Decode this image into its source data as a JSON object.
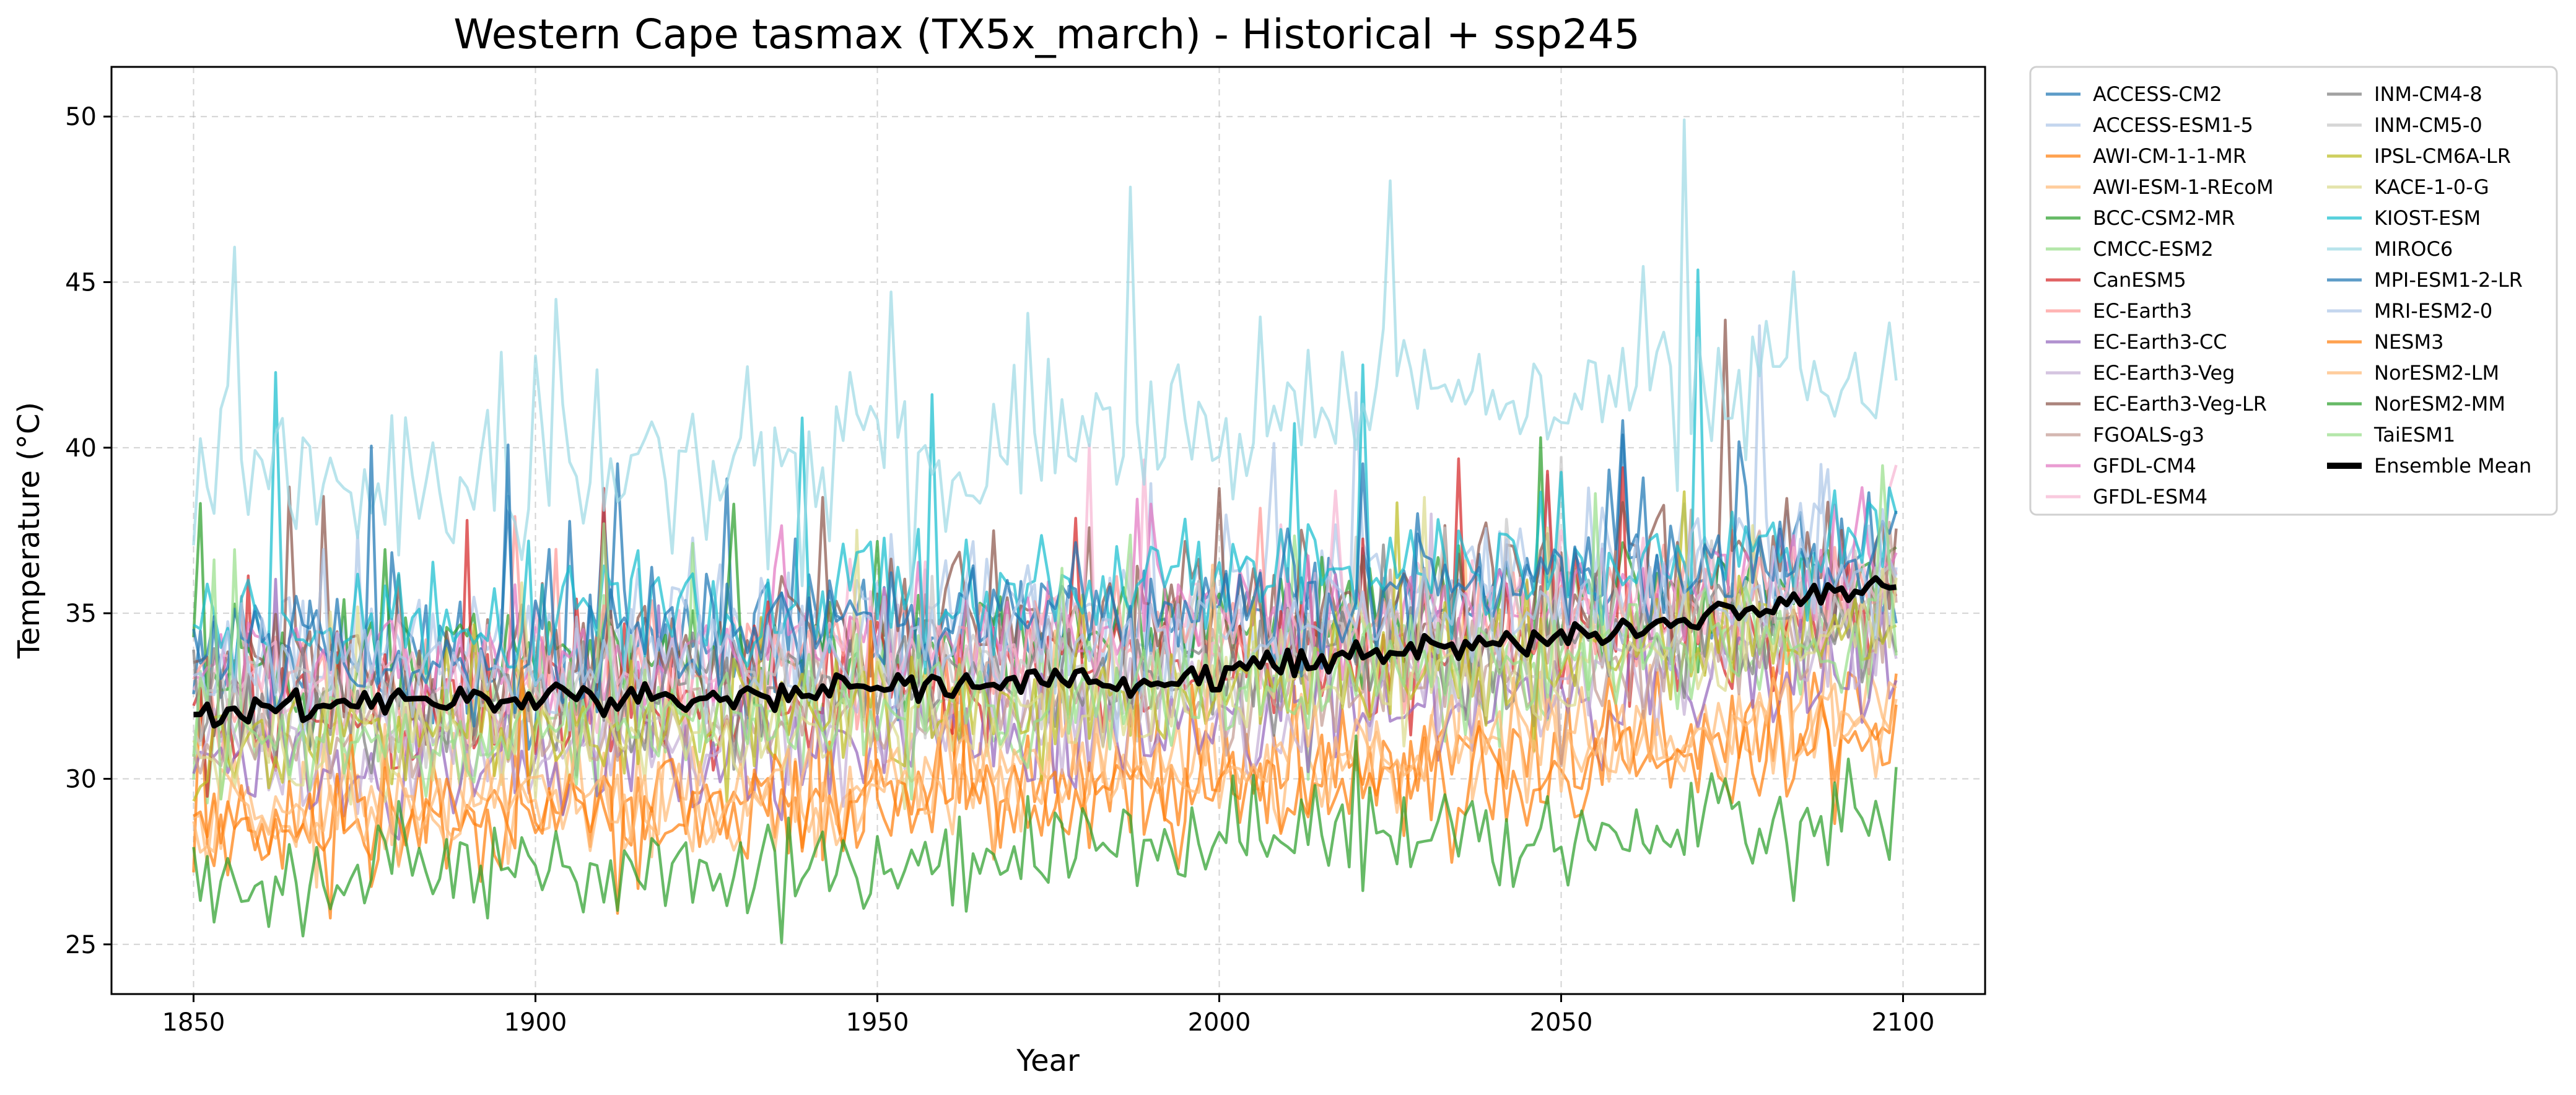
{
  "chart_data": {
    "type": "line",
    "title": "Western Cape tasmax (TX5x_march) - Historical + ssp245",
    "xlabel": "Year",
    "ylabel": "Temperature (°C)",
    "xlim": [
      1838,
      2112
    ],
    "ylim": [
      23.5,
      51.5
    ],
    "x_ticks": [
      1850,
      1900,
      1950,
      2000,
      2050,
      2100
    ],
    "y_ticks": [
      25,
      30,
      35,
      40,
      45,
      50
    ],
    "grid": true,
    "legend_position": "outside-upper-right",
    "legend_columns": 2,
    "x_range": [
      1850,
      2099
    ],
    "series": [
      {
        "name": "ACCESS-CM2",
        "color": "#1f77b4",
        "start": 33.6,
        "end": 36.6,
        "variability": 1.4,
        "seed": 1
      },
      {
        "name": "ACCESS-ESM1-5",
        "color": "#aec7e8",
        "start": 33.7,
        "end": 37.2,
        "variability": 1.5,
        "seed": 2
      },
      {
        "name": "AWI-CM-1-1-MR",
        "color": "#ff7f0e",
        "start": 28.4,
        "end": 31.6,
        "variability": 1.3,
        "seed": 3
      },
      {
        "name": "AWI-ESM-1-REcoM",
        "color": "#ffbb78",
        "start": 28.8,
        "end": 32.0,
        "variability": 1.3,
        "seed": 4
      },
      {
        "name": "BCC-CSM2-MR",
        "color": "#2ca02c",
        "start": 33.0,
        "end": 36.2,
        "variability": 1.4,
        "seed": 5
      },
      {
        "name": "CMCC-ESM2",
        "color": "#98df8a",
        "start": 31.4,
        "end": 34.7,
        "variability": 1.3,
        "seed": 6
      },
      {
        "name": "CanESM5",
        "color": "#d62728",
        "start": 31.8,
        "end": 35.2,
        "variability": 1.3,
        "seed": 7
      },
      {
        "name": "EC-Earth3",
        "color": "#ff9896",
        "start": 32.6,
        "end": 35.8,
        "variability": 1.4,
        "seed": 8
      },
      {
        "name": "EC-Earth3-CC",
        "color": "#9467bd",
        "start": 30.2,
        "end": 33.6,
        "variability": 1.4,
        "seed": 9
      },
      {
        "name": "EC-Earth3-Veg",
        "color": "#c5b0d5",
        "start": 30.6,
        "end": 34.0,
        "variability": 1.4,
        "seed": 10
      },
      {
        "name": "EC-Earth3-Veg-LR",
        "color": "#8c564b",
        "start": 33.4,
        "end": 36.8,
        "variability": 1.6,
        "seed": 11
      },
      {
        "name": "FGOALS-g3",
        "color": "#c49c94",
        "start": 31.2,
        "end": 34.4,
        "variability": 1.3,
        "seed": 12
      },
      {
        "name": "GFDL-CM4",
        "color": "#e377c2",
        "start": 33.2,
        "end": 36.4,
        "variability": 1.3,
        "seed": 13
      },
      {
        "name": "GFDL-ESM4",
        "color": "#f7b6d2",
        "start": 33.0,
        "end": 36.0,
        "variability": 1.3,
        "seed": 14
      },
      {
        "name": "INM-CM4-8",
        "color": "#7f7f7f",
        "start": 31.9,
        "end": 35.0,
        "variability": 1.3,
        "seed": 15
      },
      {
        "name": "INM-CM5-0",
        "color": "#c7c7c7",
        "start": 32.2,
        "end": 35.4,
        "variability": 1.3,
        "seed": 16
      },
      {
        "name": "IPSL-CM6A-LR",
        "color": "#bcbd22",
        "start": 31.0,
        "end": 34.6,
        "variability": 1.3,
        "seed": 17
      },
      {
        "name": "KACE-1-0-G",
        "color": "#dbdb8d",
        "start": 30.8,
        "end": 34.4,
        "variability": 1.3,
        "seed": 18
      },
      {
        "name": "KIOST-ESM",
        "color": "#17becf",
        "start": 34.6,
        "end": 37.4,
        "variability": 1.5,
        "seed": 19
      },
      {
        "name": "MIROC6",
        "color": "#9edae5",
        "start": 39.2,
        "end": 42.4,
        "variability": 1.9,
        "seed": 20
      },
      {
        "name": "MPI-ESM1-2-LR",
        "color": "#1f77b4",
        "start": 33.8,
        "end": 37.0,
        "variability": 1.4,
        "seed": 21
      },
      {
        "name": "MRI-ESM2-0",
        "color": "#aec7e8",
        "start": 32.8,
        "end": 36.2,
        "variability": 1.4,
        "seed": 22
      },
      {
        "name": "NESM3",
        "color": "#ff7f0e",
        "start": 28.6,
        "end": 31.2,
        "variability": 1.3,
        "seed": 23
      },
      {
        "name": "NorESM2-LM",
        "color": "#ffbb78",
        "start": 29.0,
        "end": 31.8,
        "variability": 1.3,
        "seed": 24
      },
      {
        "name": "NorESM2-MM",
        "color": "#2ca02c",
        "start": 26.9,
        "end": 29.2,
        "variability": 1.2,
        "seed": 25
      },
      {
        "name": "TaiESM1",
        "color": "#98df8a",
        "start": 31.2,
        "end": 34.6,
        "variability": 1.3,
        "seed": 26
      }
    ],
    "ensemble_mean": {
      "name": "Ensemble Mean",
      "color": "#000000",
      "anchors": [
        [
          1850,
          32.0
        ],
        [
          1875,
          32.3
        ],
        [
          1900,
          32.4
        ],
        [
          1925,
          32.4
        ],
        [
          1950,
          32.7
        ],
        [
          1975,
          32.9
        ],
        [
          2000,
          33.2
        ],
        [
          2025,
          33.8
        ],
        [
          2050,
          34.3
        ],
        [
          2075,
          35.0
        ],
        [
          2099,
          35.9
        ]
      ]
    }
  }
}
